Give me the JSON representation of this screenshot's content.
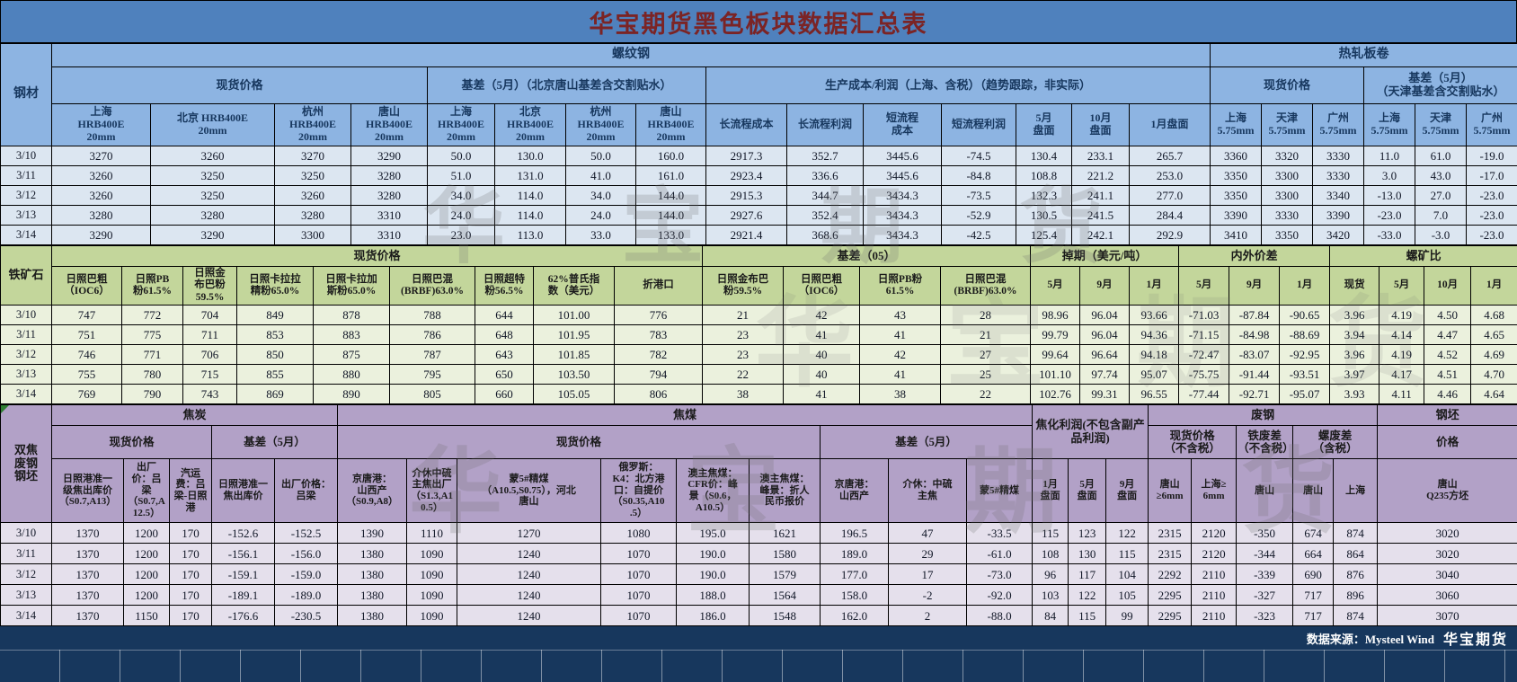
{
  "title": "华宝期货黑色板块数据汇总表",
  "watermark": "华 宝 期 货",
  "footer": {
    "source_label": "数据来源：Mysteel Wind",
    "brand": "华宝期货"
  },
  "steel": {
    "label": "钢材",
    "band": {
      "rebar": "螺纹钢",
      "hrc": "热轧板卷"
    },
    "groups": {
      "spot": "现货价格",
      "basis": "基差（5月）（北京唐山基差含交割贴水）",
      "cost": "生产成本/利润（上海、含税）（趋势跟踪，非实际）",
      "hrc_spot": "现货价格",
      "hrc_basis": "基差（5月）\n（天津基差含交割贴水）"
    },
    "columns": [
      "上海\nHRB400E\n20mm",
      "北京 HRB400E\n20mm",
      "杭州\nHRB400E\n20mm",
      "唐山\nHRB400E\n20mm",
      "上海\nHRB400E\n20mm",
      "北京\nHRB400E\n20mm",
      "杭州\nHRB400E\n20mm",
      "唐山\nHRB400E\n20mm",
      "长流程成本",
      "长流程利润",
      "短流程\n成本",
      "短流程利润",
      "5月\n盘面",
      "10月\n盘面",
      "1月盘面",
      "上海\n5.75mm",
      "天津\n5.75mm",
      "广州\n5.75mm",
      "上海\n5.75mm",
      "天津\n5.75mm",
      "广州\n5.75mm"
    ],
    "rows": [
      {
        "date": "3/10",
        "values": [
          "3270",
          "3260",
          "3270",
          "3290",
          "50.0",
          "130.0",
          "50.0",
          "160.0",
          "2917.3",
          "352.7",
          "3445.6",
          "-74.5",
          "130.4",
          "233.1",
          "265.7",
          "3360",
          "3320",
          "3330",
          "11.0",
          "61.0",
          "-19.0"
        ]
      },
      {
        "date": "3/11",
        "values": [
          "3260",
          "3250",
          "3250",
          "3280",
          "51.0",
          "131.0",
          "41.0",
          "161.0",
          "2923.4",
          "336.6",
          "3445.6",
          "-84.8",
          "108.8",
          "221.2",
          "253.0",
          "3350",
          "3300",
          "3330",
          "3.0",
          "43.0",
          "-17.0"
        ]
      },
      {
        "date": "3/12",
        "values": [
          "3260",
          "3250",
          "3260",
          "3280",
          "34.0",
          "114.0",
          "34.0",
          "144.0",
          "2915.3",
          "344.7",
          "3434.3",
          "-73.5",
          "132.3",
          "241.1",
          "277.0",
          "3350",
          "3300",
          "3340",
          "-13.0",
          "27.0",
          "-23.0"
        ]
      },
      {
        "date": "3/13",
        "values": [
          "3280",
          "3280",
          "3280",
          "3310",
          "24.0",
          "114.0",
          "24.0",
          "144.0",
          "2927.6",
          "352.4",
          "3434.3",
          "-52.9",
          "130.5",
          "241.5",
          "284.4",
          "3390",
          "3330",
          "3390",
          "-23.0",
          "7.0",
          "-23.0"
        ]
      },
      {
        "date": "3/14",
        "values": [
          "3290",
          "3290",
          "3300",
          "3310",
          "23.0",
          "113.0",
          "33.0",
          "133.0",
          "2921.4",
          "368.6",
          "3434.3",
          "-42.5",
          "125.4",
          "242.1",
          "292.9",
          "3410",
          "3350",
          "3420",
          "-33.0",
          "-3.0",
          "-23.0"
        ]
      }
    ]
  },
  "iron": {
    "label": "铁矿石",
    "groups": {
      "spot": "现货价格",
      "basis": "基差（05）",
      "swap": "掉期（美元/吨）",
      "spread": "内外价差",
      "ratio": "螺矿比"
    },
    "columns": [
      "日照巴粗\n（IOC6）",
      "日照PB\n粉61.5%",
      "日照金\n布巴粉\n59.5%",
      "日照卡拉拉\n精粉65.0%",
      "日照卡拉加\n斯粉65.0%",
      "日照巴混\n(BRBF)63.0%",
      "日照超特\n粉56.5%",
      "62%普氏指\n数（美元）",
      "折港口",
      "日照金布巴\n粉59.5%",
      "日照巴粗\n（IOC6）",
      "日照PB粉\n61.5%",
      "日照巴混\n(BRBF)63.0%",
      "5月",
      "9月",
      "1月",
      "5月",
      "9月",
      "1月",
      "现货",
      "5月",
      "10月",
      "1月"
    ],
    "rows": [
      {
        "date": "3/10",
        "values": [
          "747",
          "772",
          "704",
          "849",
          "878",
          "788",
          "644",
          "101.00",
          "776",
          "21",
          "42",
          "43",
          "28",
          "98.96",
          "96.04",
          "93.66",
          "-71.03",
          "-87.84",
          "-90.65",
          "3.96",
          "4.19",
          "4.50",
          "4.68"
        ]
      },
      {
        "date": "3/11",
        "values": [
          "751",
          "775",
          "711",
          "853",
          "883",
          "786",
          "648",
          "101.95",
          "783",
          "23",
          "41",
          "41",
          "21",
          "99.79",
          "96.04",
          "94.36",
          "-71.15",
          "-84.98",
          "-88.69",
          "3.94",
          "4.14",
          "4.47",
          "4.65"
        ]
      },
      {
        "date": "3/12",
        "values": [
          "746",
          "771",
          "706",
          "850",
          "875",
          "787",
          "643",
          "101.85",
          "782",
          "23",
          "40",
          "42",
          "27",
          "99.64",
          "96.64",
          "94.18",
          "-72.47",
          "-83.07",
          "-92.95",
          "3.96",
          "4.19",
          "4.52",
          "4.69"
        ]
      },
      {
        "date": "3/13",
        "values": [
          "755",
          "780",
          "715",
          "855",
          "880",
          "795",
          "650",
          "103.50",
          "794",
          "22",
          "40",
          "41",
          "25",
          "101.10",
          "97.74",
          "95.07",
          "-75.75",
          "-91.44",
          "-93.51",
          "3.97",
          "4.17",
          "4.51",
          "4.70"
        ]
      },
      {
        "date": "3/14",
        "values": [
          "769",
          "790",
          "743",
          "869",
          "890",
          "805",
          "660",
          "105.05",
          "806",
          "38",
          "41",
          "38",
          "22",
          "102.76",
          "99.31",
          "96.55",
          "-77.44",
          "-92.71",
          "-95.07",
          "3.93",
          "4.11",
          "4.46",
          "4.64"
        ]
      }
    ]
  },
  "coke": {
    "label": "双焦\n废钢\n钢坯",
    "band": {
      "coke": "焦炭",
      "coal": "焦煤",
      "profit": "焦化利润(不包含副产品利润)",
      "scrap": "废钢",
      "billet": "钢坯"
    },
    "groups": {
      "coke_spot": "现货价格",
      "coke_basis": "基差（5月）",
      "coal_spot": "现货价格",
      "coal_basis": "基差（5月）",
      "scrap_spot": "现货价格\n（不含税）",
      "iron_scrap": "铁废差\n（不含税）",
      "rebar_scrap": "螺废差\n（含税）",
      "price": "价格"
    },
    "columns": [
      "日照港准一\n级焦出库价\n（S0.7,A13）",
      "出厂\n价：吕\n梁\n（S0.7,A\n12.5）",
      "汽运\n费：吕\n梁-日照\n港",
      "日照港准一\n焦出库价",
      "出厂价格：\n吕梁",
      "京唐港：\n山西产\n（S0.9,A8）",
      "介休中硫\n主焦出厂\n（S1.3,A1\n0.5）",
      "蒙5#精煤\n（A10.5,S0.75），河北\n唐山",
      "俄罗斯：\nK4：北方港\n口：自提价\n（S0.35,A10\n.5）",
      "澳主焦煤：\nCFR价：峰\n景（S0.6，\nA10.5）",
      "澳主焦煤：\n峰景：折人\n民币报价",
      "京唐港：\n山西产",
      "介休：中硫\n主焦",
      "蒙5#精煤",
      "1月\n盘面",
      "5月\n盘面",
      "9月\n盘面",
      "唐山\n≥6mm",
      "上海≥\n6mm",
      "唐山",
      "唐山",
      "上海",
      "唐山\nQ235方坯"
    ],
    "rows": [
      {
        "date": "3/10",
        "values": [
          "1370",
          "1200",
          "170",
          "-152.6",
          "-152.5",
          "1390",
          "1110",
          "1270",
          "1080",
          "195.0",
          "1621",
          "196.5",
          "47",
          "-33.5",
          "115",
          "123",
          "122",
          "2315",
          "2120",
          "-350",
          "674",
          "874",
          "3020"
        ]
      },
      {
        "date": "3/11",
        "values": [
          "1370",
          "1200",
          "170",
          "-156.1",
          "-156.0",
          "1380",
          "1090",
          "1240",
          "1070",
          "190.0",
          "1580",
          "189.0",
          "29",
          "-61.0",
          "108",
          "130",
          "115",
          "2315",
          "2120",
          "-344",
          "664",
          "864",
          "3020"
        ]
      },
      {
        "date": "3/12",
        "values": [
          "1370",
          "1200",
          "170",
          "-159.1",
          "-159.0",
          "1380",
          "1090",
          "1240",
          "1070",
          "190.0",
          "1579",
          "177.0",
          "17",
          "-73.0",
          "96",
          "117",
          "104",
          "2292",
          "2110",
          "-339",
          "690",
          "876",
          "3040"
        ]
      },
      {
        "date": "3/13",
        "values": [
          "1370",
          "1200",
          "170",
          "-189.1",
          "-189.0",
          "1380",
          "1090",
          "1240",
          "1070",
          "188.0",
          "1564",
          "158.0",
          "-2",
          "-92.0",
          "103",
          "122",
          "105",
          "2295",
          "2110",
          "-327",
          "717",
          "896",
          "3060"
        ]
      },
      {
        "date": "3/14",
        "values": [
          "1370",
          "1150",
          "170",
          "-176.6",
          "-230.5",
          "1380",
          "1090",
          "1240",
          "1070",
          "186.0",
          "1548",
          "162.0",
          "2",
          "-88.0",
          "84",
          "115",
          "99",
          "2295",
          "2110",
          "-323",
          "717",
          "874",
          "3070"
        ]
      }
    ]
  }
}
